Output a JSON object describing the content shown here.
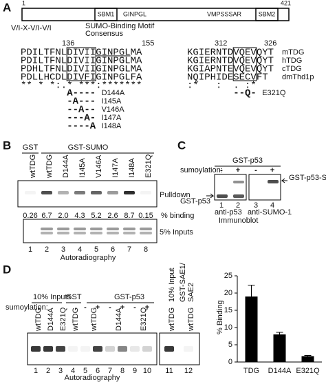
{
  "panel_labels": [
    "A",
    "B",
    "C",
    "D"
  ],
  "panel_a": {
    "protein_start": "1",
    "protein_end": "421",
    "domains": [
      "SBM1",
      "GINPGL",
      "VMPSSSAR",
      "SBM2"
    ],
    "consensus": "V/I-X-V/I-V/I",
    "consensus_label": [
      "SUMO-Binding Motif",
      "Consensus"
    ],
    "left_range": [
      "136",
      "155"
    ],
    "right_range": [
      "312",
      "326"
    ],
    "species": [
      "mTDG",
      "hTDG",
      "cTDG",
      "dmThd1p"
    ],
    "left_sequences": [
      "PDILTFNLDIVIIGINPGLMA",
      "PDILTFNLDIVIIGINPGLMA",
      "PDHLTFNLDIVIIGINPGLMA",
      "PDLLHCDLDIVFIGINPGLFA"
    ],
    "left_conservation": "** * *:.* ***:*******",
    "right_sequences": [
      "KGIERNTDVQEVQYT",
      "KGIERNTDVQEVQYT",
      "KGIAPNTEVQEVQYT",
      "NQIPHIDESECVFT"
    ],
    "right_conservation": ":*   :  . :*",
    "left_mutants": [
      {
        "pattern": "A----",
        "name": "D144A"
      },
      {
        "pattern": "-A---",
        "name": "I145A"
      },
      {
        "pattern": "--A--",
        "name": "V146A"
      },
      {
        "pattern": "---A-",
        "name": "I147A"
      },
      {
        "pattern": "----A",
        "name": "I148A"
      }
    ],
    "right_mutant": {
      "pattern": "--Q-",
      "name": "E321Q"
    }
  },
  "panel_b": {
    "group_labels": [
      "GST",
      "GST-SUMO"
    ],
    "lanes": [
      "wtTDG",
      "wtTDG",
      "D144A",
      "I145A",
      "V146A",
      "I147A",
      "I148A",
      "E321Q"
    ],
    "pulldown_label": "Pulldown",
    "percent_binding": [
      "0.26",
      "6.7",
      "2.0",
      "4.3",
      "5.2",
      "2.6",
      "8.7",
      "0.15"
    ],
    "percent_label": "% binding",
    "inputs_label": "5% Inputs",
    "lane_numbers": [
      1,
      2,
      3,
      4,
      5,
      6,
      7,
      8
    ],
    "footer": "Autoradiography"
  },
  "panel_c": {
    "title": "GST-p53",
    "sumoylation_label": "sumoylation:",
    "treatments": [
      "-",
      "+",
      "-",
      "+"
    ],
    "band_labels": [
      "GST-p53",
      "GST-p53-S"
    ],
    "lane_numbers": [
      1,
      2,
      3,
      4
    ],
    "antibodies": [
      "anti-p53",
      "anti-SUMO-1"
    ],
    "footer": "Immunoblot"
  },
  "panel_d": {
    "group_labels": [
      "10% Inputs",
      "GST",
      "GST-p53",
      "10% Input",
      "GST-SAE1/",
      "SAE2"
    ],
    "sumoylation_label": "sumoylation:",
    "treatments": [
      "-",
      "+",
      "-",
      "+",
      "-",
      "+"
    ],
    "input_lanes": [
      "wtTDG",
      "D144A",
      "E321Q"
    ],
    "gst_lane": "wtTDG",
    "p53_lanes": [
      "wtTDG",
      "D144A",
      "E321Q"
    ],
    "right_lanes": [
      "wtTDG",
      "wtTDG"
    ],
    "lane_numbers": [
      1,
      2,
      3,
      4,
      5,
      6,
      7,
      8,
      9,
      10,
      11,
      12
    ],
    "footer": "Autoradiography"
  },
  "chart_data": {
    "type": "bar",
    "y_label": "% Binding",
    "categories": [
      "TDG",
      "D144A",
      "E321Q"
    ],
    "values": [
      19,
      8,
      1.7
    ],
    "errors": [
      3.3,
      0.6,
      0.2
    ],
    "color": "#000000",
    "ylim": [
      0,
      25
    ],
    "yticks": [
      0,
      5,
      10,
      15,
      20,
      25
    ]
  }
}
